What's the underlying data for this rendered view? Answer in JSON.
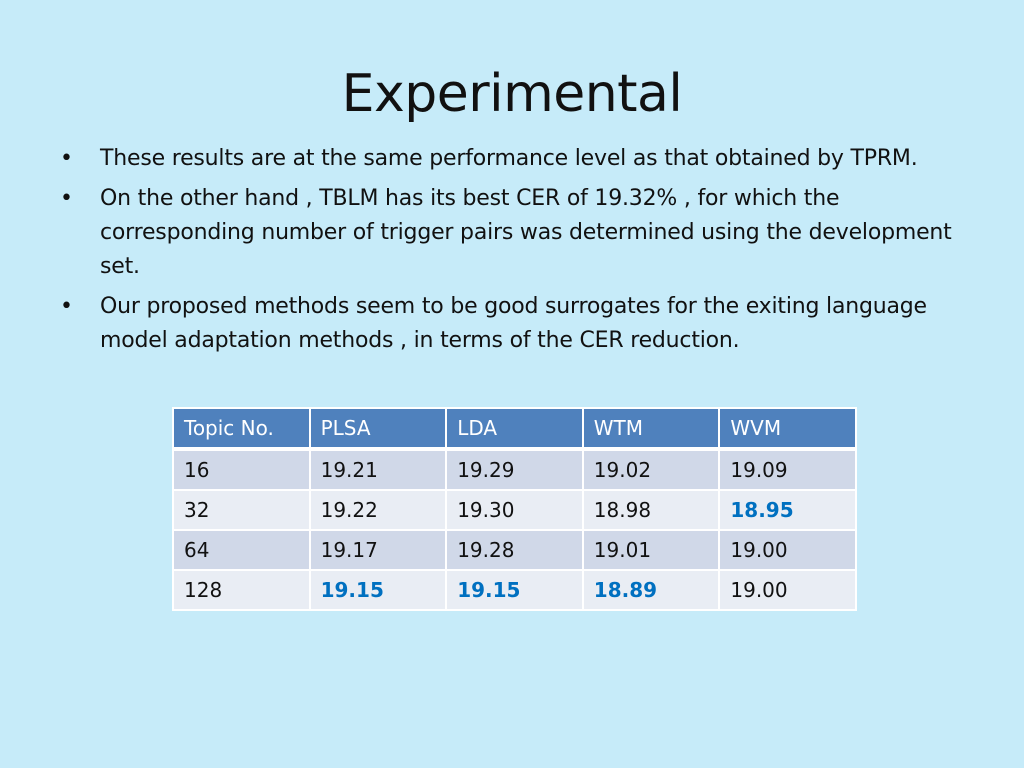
{
  "slide": {
    "title": "Experimental",
    "bullets": [
      "These results are at the same performance level as that obtained by TPRM.",
      "On the other hand , TBLM has its best CER of 19.32% , for which the corresponding number of trigger pairs was determined using the development set.",
      "Our proposed methods seem to be good surrogates for the exiting language model adaptation methods , in terms of the CER reduction."
    ],
    "bullet_glyph": "•"
  },
  "chart_data": {
    "type": "table",
    "columns": [
      "Topic No.",
      "PLSA",
      "LDA",
      "WTM",
      "WVM"
    ],
    "rows": [
      [
        "16",
        "19.21",
        "19.29",
        "19.02",
        "19.09"
      ],
      [
        "32",
        "19.22",
        "19.30",
        "18.98",
        "18.95"
      ],
      [
        "64",
        "19.17",
        "19.28",
        "19.01",
        "19.00"
      ],
      [
        "128",
        "19.15",
        "19.15",
        "18.89",
        "19.00"
      ]
    ],
    "highlighted_cells": [
      {
        "row": 1,
        "col": 4
      },
      {
        "row": 3,
        "col": 1
      },
      {
        "row": 3,
        "col": 2
      },
      {
        "row": 3,
        "col": 3
      }
    ],
    "colors": {
      "background": "#c6ebf9",
      "header": "#4f81bd",
      "row_odd": "#d0d8e8",
      "row_even": "#e9edf4",
      "highlight_text": "#0070c0"
    }
  }
}
